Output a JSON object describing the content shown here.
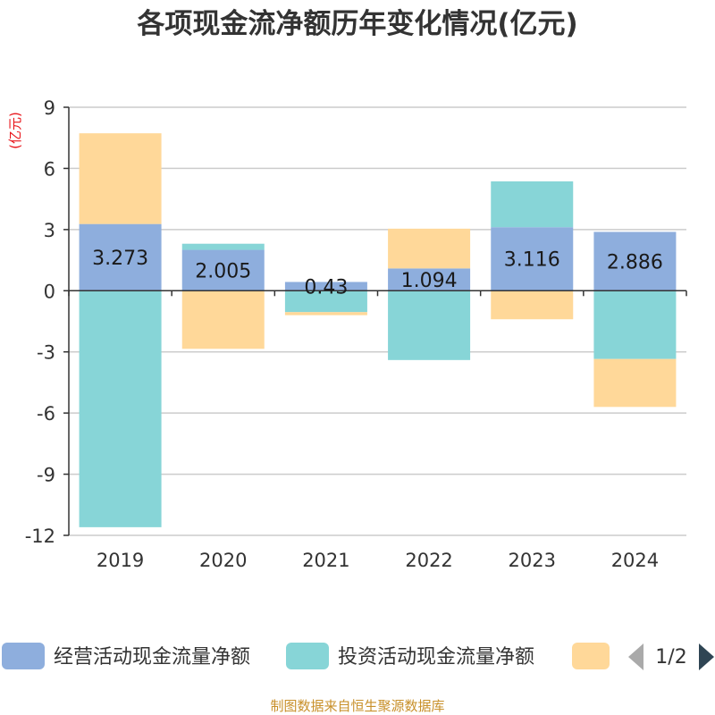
{
  "chart_data": {
    "type": "bar",
    "stacked": true,
    "title": "各项现金流净额历年变化情况(亿元)",
    "unit_label": "(亿元)",
    "categories": [
      "2019",
      "2020",
      "2021",
      "2022",
      "2023",
      "2024"
    ],
    "ylim": [
      -12,
      9
    ],
    "yticks": [
      9,
      6,
      3,
      0,
      -3,
      -6,
      -9,
      -12
    ],
    "grid": true,
    "series": [
      {
        "name": "经营活动现金流量净额",
        "color": "#8eaedd",
        "values": [
          3.273,
          2.005,
          0.43,
          1.094,
          3.116,
          2.886
        ],
        "show_labels": true
      },
      {
        "name": "投资活动现金流量净额",
        "color": "#87d5d7",
        "values": [
          -11.6,
          0.3,
          -1.05,
          -3.4,
          2.25,
          -3.35
        ],
        "show_labels": false
      },
      {
        "name": "",
        "color": "#ffd899",
        "values": [
          4.45,
          -2.85,
          -0.15,
          1.95,
          -1.4,
          -2.35
        ],
        "show_labels": false
      }
    ]
  },
  "legend": {
    "page": "1/2"
  },
  "footer": "制图数据来自恒生聚源数据库"
}
